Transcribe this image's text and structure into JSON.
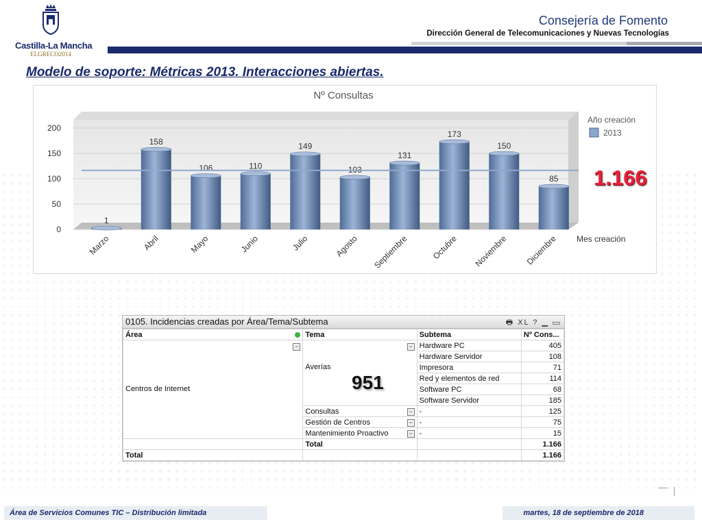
{
  "header": {
    "org_prefix": "Consejería de",
    "org_name": "Fomento",
    "subtitle": "Dirección General de Telecomunicaciones y Nuevas Tecnologías",
    "logo_text": "Castilla-La Mancha",
    "logo_sub": "ELGRECO2014"
  },
  "slide": {
    "title": "Modelo de soporte: Métricas 2013. Interacciones abiertas."
  },
  "chart_data": {
    "type": "bar",
    "title": "Nº Consultas",
    "xlabel": "Mes creación",
    "ylabel": "",
    "legend_title": "Año creación",
    "legend_position": "top-right",
    "categories": [
      "Marzo",
      "Abril",
      "Mayo",
      "Junio",
      "Julio",
      "Agosto",
      "Septiembre",
      "Octubre",
      "Noviembre",
      "Diciembre"
    ],
    "series": [
      {
        "name": "2013",
        "values": [
          1,
          158,
          106,
          110,
          149,
          103,
          131,
          173,
          150,
          85
        ]
      }
    ],
    "yticks": [
      "0",
      "50",
      "100",
      "150",
      "200"
    ],
    "ylim": [
      0,
      200
    ],
    "reference_line": 116.6,
    "colors": {
      "bar": "#7f9cc4",
      "bar_dark": "#4a6791",
      "ref_line": "#8fa8cc"
    },
    "grid": true
  },
  "total_badge": "1.166",
  "table": {
    "title": "0105. Incidencias creadas por Área/Tema/Subtema",
    "icons": "🖶 XL ? ▁ ▭",
    "headers": [
      "Área",
      "Tema",
      "Subtema",
      "Nº Cons..."
    ],
    "area": "Centros de Internet",
    "averias": {
      "tema": "Averías",
      "rows": [
        {
          "subtema": "Hardware PC",
          "count": "405"
        },
        {
          "subtema": "Hardware Servidor",
          "count": "108"
        },
        {
          "subtema": "Impresora",
          "count": "71"
        },
        {
          "subtema": "Red y elementos de red",
          "count": "114"
        },
        {
          "subtema": "Software PC",
          "count": "68"
        },
        {
          "subtema": "Software Servidor",
          "count": "185"
        }
      ]
    },
    "others": [
      {
        "tema": "Consultas",
        "subtema": "-",
        "count": "125"
      },
      {
        "tema": "Gestión de Centros",
        "subtema": "-",
        "count": "75"
      },
      {
        "tema": "Mantenimiento Proactivo",
        "subtema": "-",
        "count": "15"
      }
    ],
    "subtotal_label": "Total",
    "subtotal_value": "1.166",
    "total_label": "Total",
    "total_value": "1.166",
    "averias_badge": "951"
  },
  "footer": {
    "left": "Área de Servicios Comunes TIC – Distribución limitada",
    "right": "martes, 18 de septiembre de 2018"
  }
}
